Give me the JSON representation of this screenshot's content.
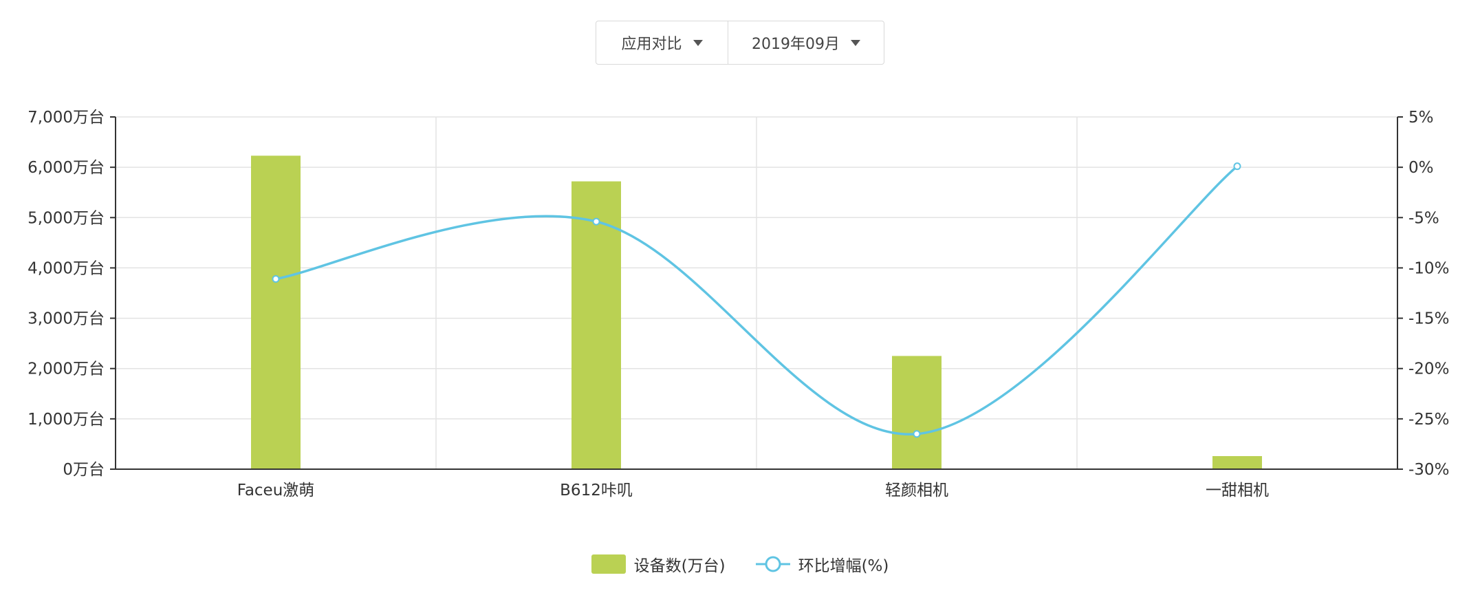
{
  "toolbar": {
    "app_compare_label": "应用对比",
    "month_label": "2019年09月"
  },
  "chart_data": {
    "type": "bar",
    "categories": [
      "Faceu激萌",
      "B612咔叽",
      "轻颜相机",
      "一甜相机"
    ],
    "series": [
      {
        "name": "设备数(万台)",
        "type": "bar",
        "axis": "left",
        "color": "#bad153",
        "values": [
          6230,
          5720,
          2250,
          260
        ]
      },
      {
        "name": "环比增幅(%)",
        "type": "line",
        "axis": "right",
        "color": "#5fc4e3",
        "values": [
          -11.1,
          -5.4,
          -26.5,
          0.1
        ]
      }
    ],
    "y_left": {
      "ylim": [
        0,
        7000
      ],
      "ticks": [
        "0万台",
        "1,000万台",
        "2,000万台",
        "3,000万台",
        "4,000万台",
        "5,000万台",
        "6,000万台",
        "7,000万台"
      ]
    },
    "y_right": {
      "ylim": [
        -30,
        5
      ],
      "ticks": [
        "-30%",
        "-25%",
        "-20%",
        "-15%",
        "-10%",
        "-5%",
        "0%",
        "5%"
      ]
    },
    "grid": true,
    "legend_position": "bottom-center"
  }
}
